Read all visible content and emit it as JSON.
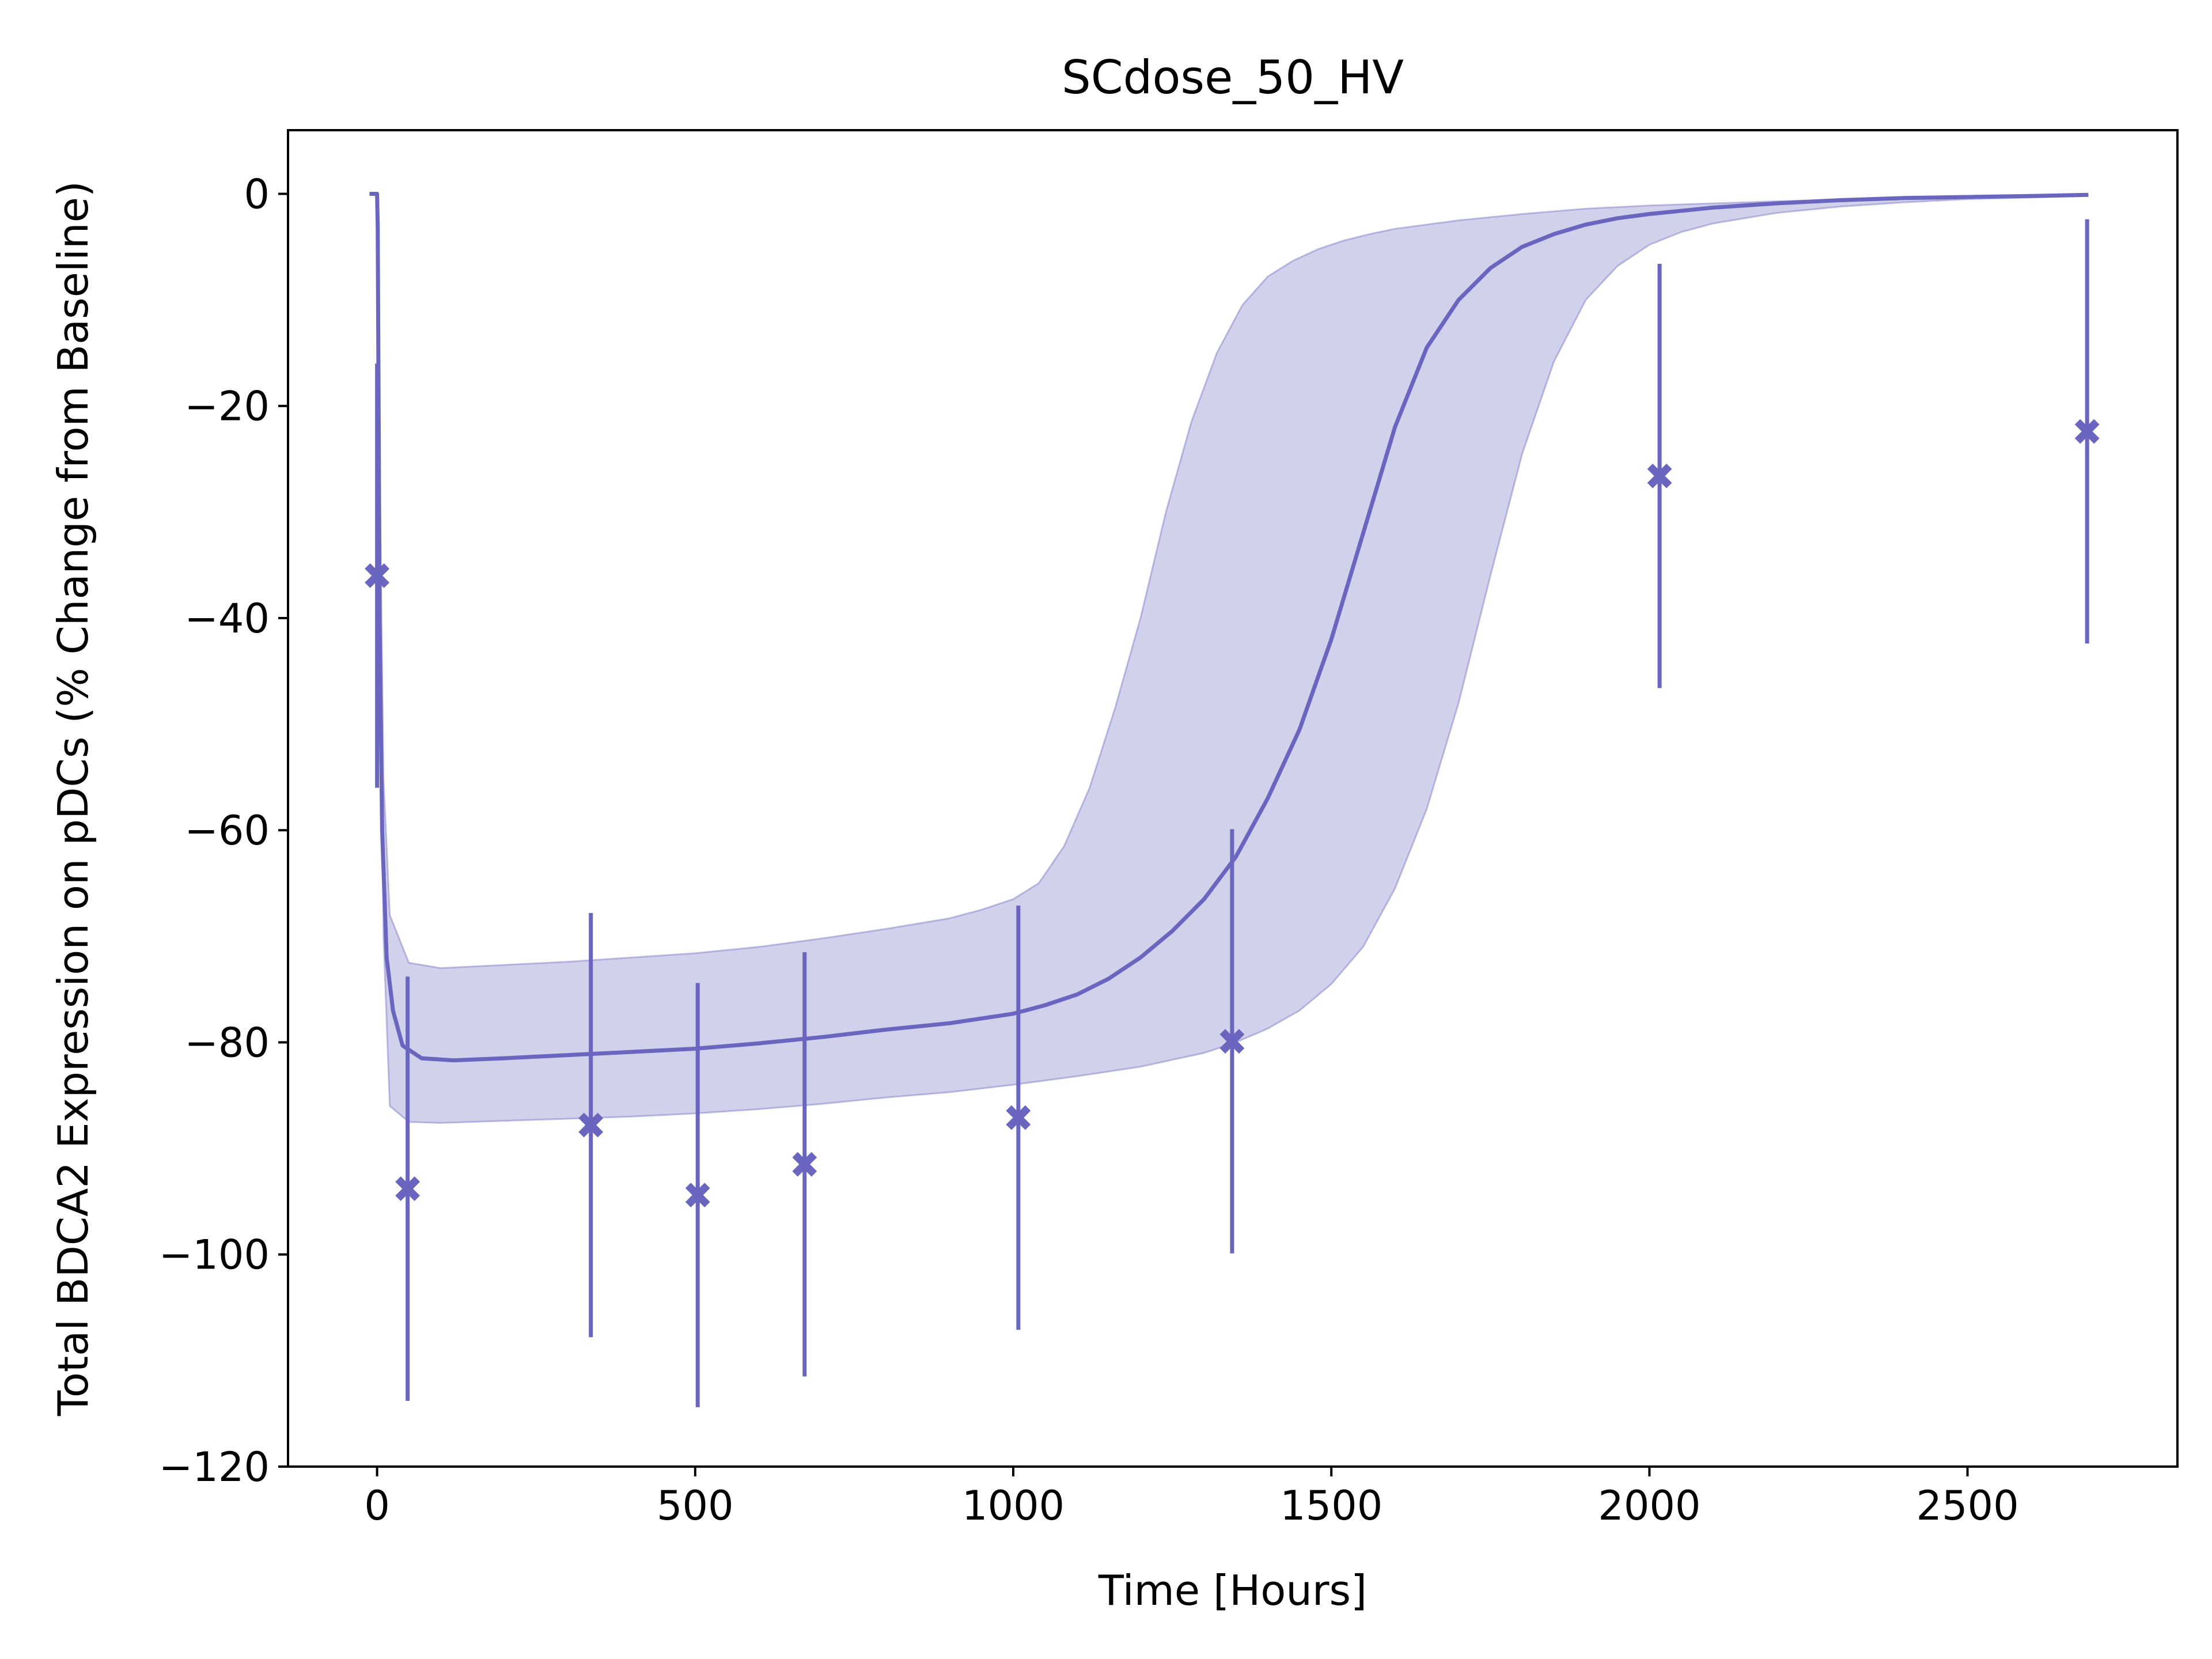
{
  "chart_data": {
    "type": "line",
    "title": "SCdose_50_HV",
    "xlabel": "Time [Hours]",
    "ylabel": "Total BDCA2 Expression on pDCs (% Change from Baseline)",
    "xlim": [
      -140,
      2830
    ],
    "ylim": [
      -120,
      6
    ],
    "x_ticks": [
      0,
      500,
      1000,
      1500,
      2000,
      2500
    ],
    "x_tick_labels": [
      "0",
      "500",
      "1000",
      "1500",
      "2000",
      "2500"
    ],
    "y_ticks": [
      0,
      -20,
      -40,
      -60,
      -80,
      -100,
      -120
    ],
    "y_tick_labels": [
      "0",
      "−20",
      "−40",
      "−60",
      "−80",
      "−100",
      "−120"
    ],
    "grid": false,
    "colors": {
      "series": "#6a66bf",
      "band": "#6a66bf",
      "band_opacity": 0.3
    },
    "model_median": {
      "x": [
        -12,
        -1,
        0,
        1,
        2,
        4,
        8,
        15,
        25,
        40,
        70,
        120,
        200,
        300,
        400,
        500,
        600,
        700,
        800,
        900,
        1000,
        1050,
        1100,
        1150,
        1200,
        1250,
        1300,
        1350,
        1400,
        1450,
        1500,
        1550,
        1600,
        1650,
        1700,
        1750,
        1800,
        1850,
        1900,
        1950,
        2000,
        2100,
        2200,
        2300,
        2400,
        2500,
        2600,
        2690
      ],
      "y": [
        0,
        0,
        0,
        -3,
        -15,
        -40,
        -60,
        -72,
        -77,
        -80.3,
        -81.5,
        -81.7,
        -81.5,
        -81.2,
        -80.9,
        -80.6,
        -80.1,
        -79.5,
        -78.8,
        -78.2,
        -77.3,
        -76.5,
        -75.5,
        -74,
        -72,
        -69.5,
        -66.5,
        -62.5,
        -57,
        -50.5,
        -42,
        -32,
        -22,
        -14.5,
        -10,
        -7,
        -5,
        -3.8,
        -2.9,
        -2.3,
        -1.9,
        -1.3,
        -0.9,
        -0.6,
        -0.4,
        -0.3,
        -0.2,
        -0.1
      ]
    },
    "interval_upper": {
      "x": [
        0,
        5,
        10,
        20,
        50,
        100,
        200,
        300,
        400,
        500,
        600,
        700,
        800,
        900,
        950,
        1000,
        1040,
        1080,
        1120,
        1160,
        1200,
        1240,
        1280,
        1320,
        1360,
        1400,
        1440,
        1480,
        1520,
        1560,
        1600,
        1700,
        1800,
        1900,
        2000,
        2200,
        2400,
        2690
      ],
      "y": [
        0,
        -30,
        -55,
        -68,
        -72.5,
        -73,
        -72.7,
        -72.4,
        -72,
        -71.6,
        -71,
        -70.2,
        -69.3,
        -68.3,
        -67.5,
        -66.5,
        -65,
        -61.5,
        -56,
        -48.5,
        -40,
        -30,
        -21.5,
        -15,
        -10.5,
        -7.8,
        -6.3,
        -5.2,
        -4.4,
        -3.8,
        -3.3,
        -2.5,
        -1.9,
        -1.4,
        -1.1,
        -0.7,
        -0.4,
        -0.2
      ]
    },
    "interval_lower": {
      "x": [
        0,
        5,
        10,
        20,
        50,
        100,
        200,
        300,
        400,
        500,
        600,
        700,
        800,
        900,
        1000,
        1100,
        1200,
        1300,
        1350,
        1400,
        1450,
        1500,
        1550,
        1600,
        1650,
        1700,
        1750,
        1800,
        1850,
        1900,
        1950,
        2000,
        2050,
        2100,
        2200,
        2300,
        2400,
        2500,
        2690
      ],
      "y": [
        0,
        -35,
        -70,
        -86,
        -87.5,
        -87.6,
        -87.4,
        -87.2,
        -87,
        -86.7,
        -86.3,
        -85.8,
        -85.2,
        -84.7,
        -84,
        -83.2,
        -82.3,
        -81,
        -80,
        -78.7,
        -77,
        -74.5,
        -71,
        -65.5,
        -58,
        -48,
        -36,
        -24.5,
        -15.8,
        -10,
        -6.8,
        -4.8,
        -3.6,
        -2.8,
        -1.8,
        -1.2,
        -0.8,
        -0.5,
        -0.2
      ]
    },
    "observed": {
      "x": [
        0,
        48,
        336,
        504,
        672,
        1008,
        1344,
        2016,
        2688
      ],
      "y": [
        -36,
        -93.8,
        -87.8,
        -94.4,
        -91.5,
        -87.1,
        -79.9,
        -26.6,
        -22.4
      ],
      "err_low": [
        -56,
        -113.8,
        -107.8,
        -114.4,
        -111.5,
        -107.1,
        -99.9,
        -46.6,
        -42.4
      ],
      "err_high": [
        -16,
        -73.8,
        -67.8,
        -74.4,
        -71.5,
        -67.1,
        -59.9,
        -6.6,
        -2.4
      ]
    }
  }
}
